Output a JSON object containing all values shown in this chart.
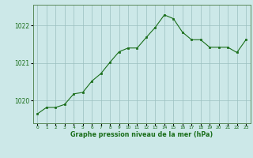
{
  "x": [
    0,
    1,
    2,
    3,
    4,
    5,
    6,
    7,
    8,
    9,
    10,
    11,
    12,
    13,
    14,
    15,
    16,
    17,
    18,
    19,
    20,
    21,
    22,
    23
  ],
  "y": [
    1019.65,
    1019.82,
    1019.82,
    1019.9,
    1020.18,
    1020.22,
    1020.52,
    1020.72,
    1021.02,
    1021.3,
    1021.4,
    1021.4,
    1021.68,
    1021.95,
    1022.28,
    1022.18,
    1021.82,
    1021.62,
    1021.62,
    1021.42,
    1021.42,
    1021.42,
    1021.28,
    1021.62
  ],
  "yticks": [
    1020,
    1021,
    1022
  ],
  "xtick_labels": [
    "0",
    "1",
    "2",
    "3",
    "4",
    "5",
    "6",
    "7",
    "8",
    "9",
    "10",
    "11",
    "12",
    "13",
    "14",
    "15",
    "16",
    "17",
    "18",
    "19",
    "20",
    "21",
    "22",
    "23"
  ],
  "ylim": [
    1019.4,
    1022.55
  ],
  "xlim": [
    -0.5,
    23.5
  ],
  "line_color": "#1a6e1a",
  "marker_color": "#1a6e1a",
  "bg_color": "#cce8e8",
  "grid_color": "#9bbfbf",
  "tick_label_color": "#1a6e1a",
  "xlabel": "Graphe pression niveau de la mer (hPa)",
  "xlabel_color": "#1a6e1a",
  "border_color": "#5a8a5a"
}
